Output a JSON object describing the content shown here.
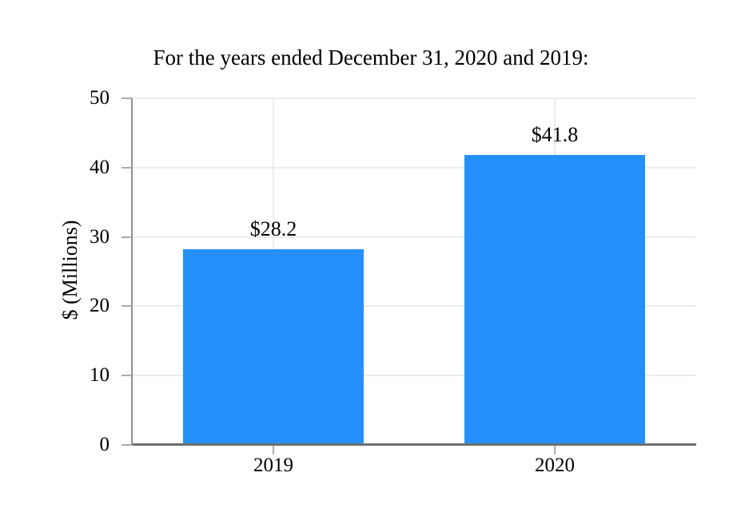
{
  "chart_data": {
    "type": "bar",
    "title": "For the years ended December 31, 2020 and 2019:",
    "xlabel": "",
    "ylabel": "$ (Millions)",
    "categories": [
      "2019",
      "2020"
    ],
    "values": [
      28.2,
      41.8
    ],
    "bar_labels": [
      "$28.2",
      "$41.8"
    ],
    "ylim": [
      0,
      50
    ],
    "yticks": [
      0,
      10,
      20,
      30,
      40,
      50
    ],
    "grid": true,
    "vertical_gridlines": true,
    "legend": false,
    "colors": {
      "bar": "#2590fb",
      "gridline": "#ececec",
      "y_axis_line": "#8f8f8f",
      "x_axis_line": "#6e6e6e",
      "tick": "#ababab",
      "text": "#000000",
      "background": "#ffffff"
    }
  }
}
